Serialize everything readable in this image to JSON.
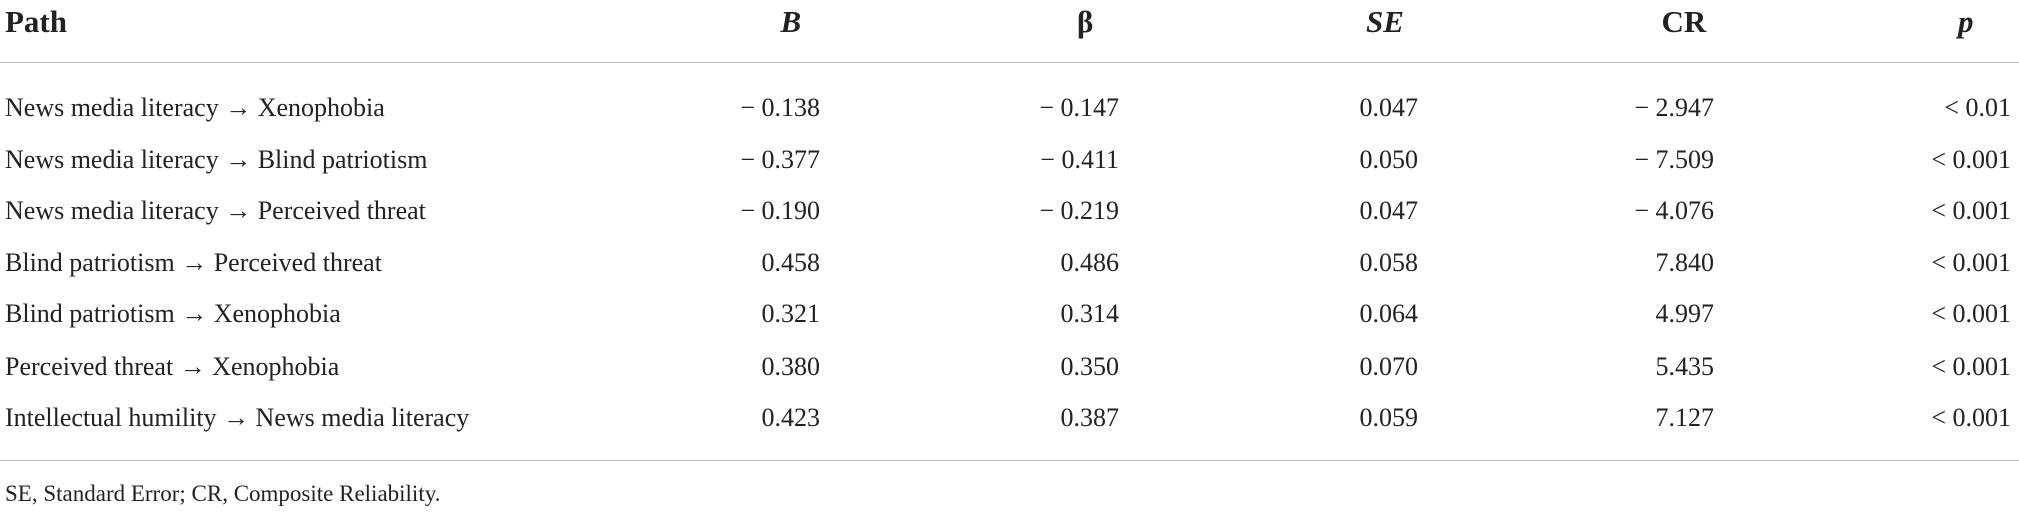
{
  "table": {
    "header": [
      "Path",
      "B",
      "β",
      "SE",
      "CR",
      "p"
    ],
    "rows": [
      [
        "News media literacy → Xenophobia",
        "− 0.138",
        "− 0.147",
        "0.047",
        "− 2.947",
        "< 0.01"
      ],
      [
        "News media literacy → Blind patriotism",
        "− 0.377",
        "− 0.411",
        "0.050",
        "− 7.509",
        "< 0.001"
      ],
      [
        "News media literacy → Perceived threat",
        "− 0.190",
        "− 0.219",
        "0.047",
        "− 4.076",
        "< 0.001"
      ],
      [
        "Blind patriotism → Perceived threat",
        "0.458",
        "0.486",
        "0.058",
        "7.840",
        "< 0.001"
      ],
      [
        "Blind patriotism → Xenophobia",
        "0.321",
        "0.314",
        "0.064",
        "4.997",
        "< 0.001"
      ],
      [
        "Perceived threat → Xenophobia",
        "0.380",
        "0.350",
        "0.070",
        "5.435",
        "< 0.001"
      ],
      [
        "Intellectual humility → News media literacy",
        "0.423",
        "0.387",
        "0.059",
        "7.127",
        "< 0.001"
      ]
    ],
    "footnote": "SE, Standard Error; CR, Composite Reliability."
  }
}
